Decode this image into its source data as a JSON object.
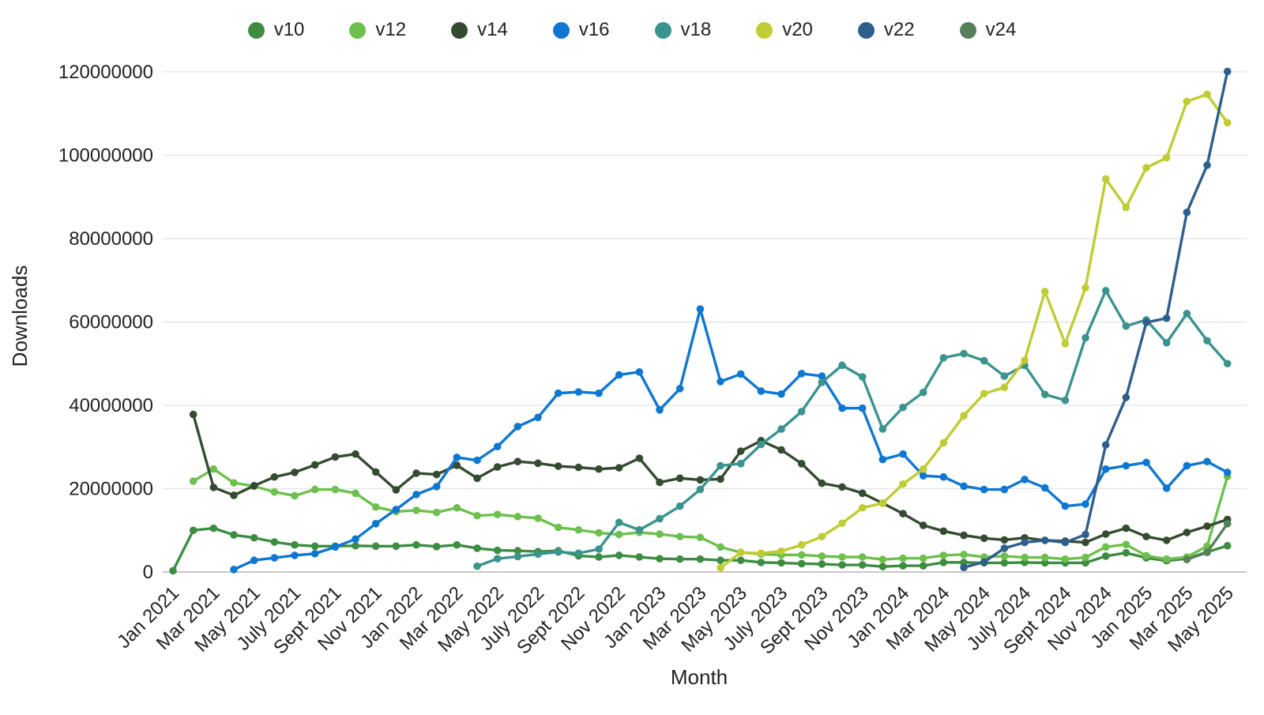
{
  "axes": {
    "xlabel": "Month",
    "ylabel": "Downloads"
  },
  "chart_data": {
    "type": "line",
    "title": "",
    "xlabel": "Month",
    "ylabel": "Downloads",
    "grid": "horizontal-only",
    "legend_position": "top-center",
    "marker": "circle",
    "ylim": [
      0,
      120000000
    ],
    "values_unit": "downloads, values given in millions",
    "y_tick_labels": [
      "0",
      "20000000",
      "40000000",
      "60000000",
      "80000000",
      "100000000",
      "120000000"
    ],
    "x_tick_labels": [
      "Jan 2021",
      "Mar 2021",
      "May 2021",
      "July 2021",
      "Sept 2021",
      "Nov 2021",
      "Jan 2022",
      "Mar 2022",
      "May 2022",
      "July 2022",
      "Sept 2022",
      "Nov 2022",
      "Jan 2023",
      "Mar 2023",
      "May 2023",
      "July 2023",
      "Sept 2023",
      "Nov 2023",
      "Jan 2024",
      "Mar 2024",
      "May 2024",
      "July 2024",
      "Sept 2024",
      "Nov 2024",
      "Jan 2025",
      "Mar 2025",
      "May 2025"
    ],
    "categories": [
      "Jan 2021",
      "Feb 2021",
      "Mar 2021",
      "Apr 2021",
      "May 2021",
      "June 2021",
      "July 2021",
      "Aug 2021",
      "Sept 2021",
      "Oct 2021",
      "Nov 2021",
      "Dec 2021",
      "Jan 2022",
      "Feb 2022",
      "Mar 2022",
      "Apr 2022",
      "May 2022",
      "June 2022",
      "July 2022",
      "Aug 2022",
      "Sept 2022",
      "Oct 2022",
      "Nov 2022",
      "Dec 2022",
      "Jan 2023",
      "Feb 2023",
      "Mar 2023",
      "Apr 2023",
      "May 2023",
      "June 2023",
      "July 2023",
      "Aug 2023",
      "Sept 2023",
      "Oct 2023",
      "Nov 2023",
      "Dec 2023",
      "Jan 2024",
      "Feb 2024",
      "Mar 2024",
      "Apr 2024",
      "May 2024",
      "June 2024",
      "July 2024",
      "Aug 2024",
      "Sept 2024",
      "Oct 2024",
      "Nov 2024",
      "Dec 2024",
      "Jan 2025",
      "Feb 2025",
      "Mar 2025",
      "Apr 2025",
      "May 2025"
    ],
    "series": [
      {
        "name": "v10",
        "color": "#3d8c41",
        "start_index": 0,
        "values_millions": [
          0.3,
          10.0,
          10.5,
          8.9,
          8.2,
          7.2,
          6.5,
          6.2,
          6.2,
          6.3,
          6.2,
          6.2,
          6.5,
          6.1,
          6.5,
          5.7,
          5.2,
          5.1,
          4.9,
          5.1,
          3.9,
          3.6,
          4.0,
          3.6,
          3.2,
          3.1,
          3.1,
          2.8,
          2.8,
          2.3,
          2.2,
          2.0,
          1.9,
          1.7,
          1.7,
          1.3,
          1.5,
          1.5,
          2.3,
          2.3,
          2.2,
          2.2,
          2.3,
          2.2,
          2.2,
          2.2,
          3.8,
          4.6,
          3.4,
          2.7,
          3.2,
          4.8,
          6.3
        ]
      },
      {
        "name": "v12",
        "color": "#6ec04e",
        "start_index": 1,
        "values_millions": [
          21.8,
          24.7,
          21.4,
          20.6,
          19.2,
          18.3,
          19.8,
          19.8,
          18.9,
          15.6,
          14.5,
          14.8,
          14.3,
          15.4,
          13.5,
          13.8,
          13.3,
          12.9,
          10.7,
          10.1,
          9.4,
          9.0,
          9.5,
          9.1,
          8.5,
          8.3,
          6.0,
          4.7,
          4.3,
          4.1,
          4.1,
          3.8,
          3.6,
          3.6,
          3.0,
          3.3,
          3.3,
          4.0,
          4.2,
          3.6,
          3.8,
          3.5,
          3.5,
          3.1,
          3.5,
          6.0,
          6.6,
          3.9,
          3.1,
          3.6,
          6.2,
          22.9
        ]
      },
      {
        "name": "v14",
        "color": "#344b31",
        "start_index": 1,
        "values_millions": [
          37.8,
          20.3,
          18.4,
          20.7,
          22.8,
          23.9,
          25.7,
          27.6,
          28.3,
          24.0,
          19.7,
          23.7,
          23.4,
          25.6,
          22.5,
          25.2,
          26.5,
          26.1,
          25.4,
          25.1,
          24.7,
          25.0,
          27.3,
          21.5,
          22.5,
          22.1,
          22.3,
          29.0,
          31.5,
          29.3,
          26.0,
          21.3,
          20.4,
          18.9,
          16.5,
          14.0,
          11.2,
          9.8,
          8.8,
          8.1,
          7.7,
          8.2,
          7.6,
          7.4,
          7.1,
          9.1,
          10.5,
          8.5,
          7.6,
          9.5,
          11.0,
          12.6
        ]
      },
      {
        "name": "v16",
        "color": "#0e77d1",
        "start_index": 3,
        "values_millions": [
          0.6,
          2.8,
          3.4,
          4.0,
          4.4,
          6.0,
          7.9,
          11.6,
          15.0,
          18.6,
          20.5,
          27.5,
          26.8,
          30.1,
          34.9,
          37.1,
          42.9,
          43.2,
          42.9,
          47.3,
          48.0,
          38.9,
          44.0,
          63.1,
          45.7,
          47.5,
          43.4,
          42.7,
          47.6,
          47.0,
          39.3,
          39.3,
          27.0,
          28.3,
          23.1,
          22.8,
          20.6,
          19.8,
          19.8,
          22.2,
          20.2,
          15.8,
          16.3,
          24.7,
          25.5,
          26.3,
          20.1,
          25.5,
          26.5,
          23.9
        ]
      },
      {
        "name": "v18",
        "color": "#3b938e",
        "start_index": 15,
        "values_millions": [
          1.4,
          3.2,
          3.7,
          4.3,
          4.8,
          4.5,
          5.5,
          11.9,
          10.1,
          12.8,
          15.8,
          19.8,
          25.5,
          26.0,
          30.6,
          34.3,
          38.5,
          45.5,
          49.6,
          46.8,
          34.3,
          39.5,
          43.1,
          51.4,
          52.4,
          50.7,
          47.0,
          49.6,
          42.6,
          41.2,
          56.2,
          67.5,
          59.0,
          60.5,
          55.0,
          62.0,
          55.5,
          50.0
        ]
      },
      {
        "name": "v20",
        "color": "#bfcc33",
        "start_index": 27,
        "values_millions": [
          1.0,
          4.7,
          4.5,
          5.0,
          6.5,
          8.5,
          11.7,
          15.4,
          16.5,
          21.1,
          24.7,
          31.0,
          37.5,
          42.8,
          44.3,
          50.8,
          67.3,
          54.8,
          68.2,
          94.3,
          87.5,
          97.0,
          99.4,
          112.9,
          114.6,
          107.8
        ]
      },
      {
        "name": "v22",
        "color": "#2e5f8c",
        "start_index": 39,
        "values_millions": [
          1.1,
          2.4,
          5.7,
          7.1,
          7.6,
          7.1,
          9.0,
          30.5,
          41.9,
          59.9,
          60.9,
          86.3,
          97.6,
          120.1
        ]
      },
      {
        "name": "v24",
        "color": "#55805a",
        "start_index": 50,
        "values_millions": [
          3.0,
          4.7,
          11.6
        ]
      }
    ]
  }
}
